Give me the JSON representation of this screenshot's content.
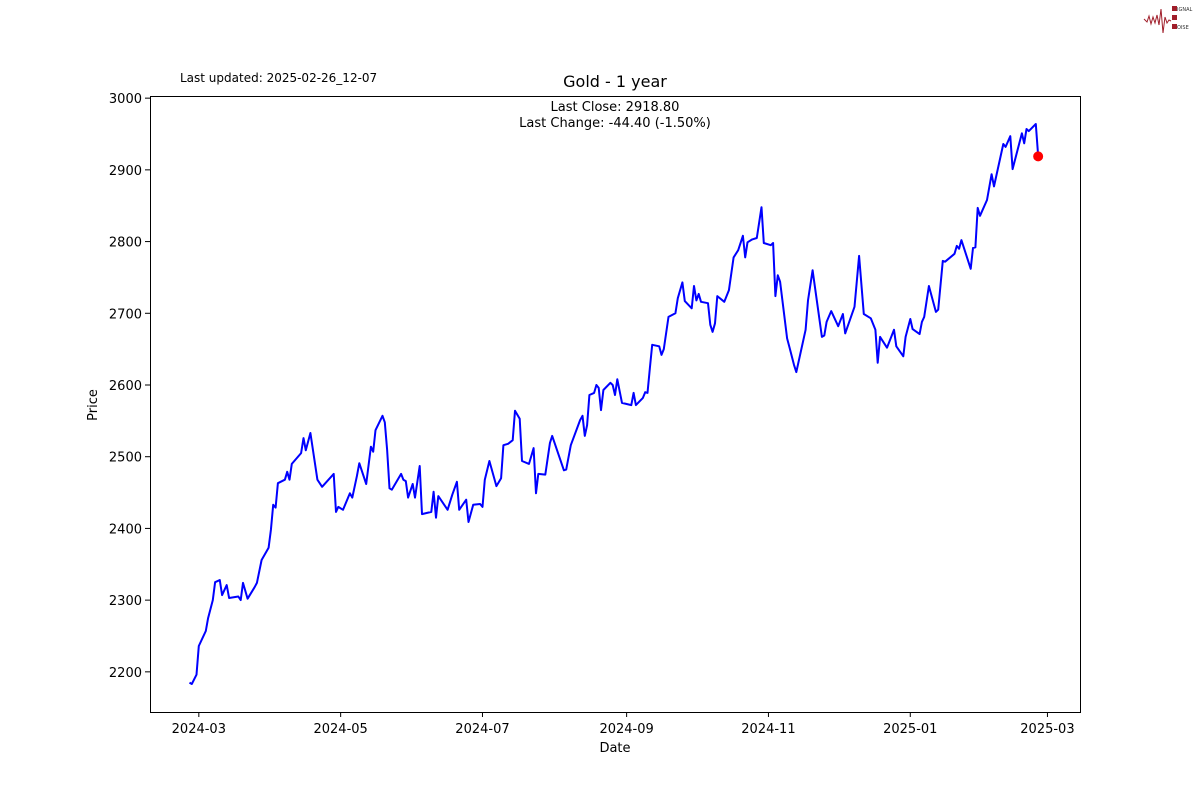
{
  "header": {
    "last_updated": "Last updated: 2025-02-26_12-07",
    "logo_text": "SIGNAL 2 NOISE"
  },
  "chart_data": {
    "type": "line",
    "title": "Gold - 1 year",
    "xlabel": "Date",
    "ylabel": "Price",
    "annotation": [
      "Last Close: 2918.80",
      "Last Change: -44.40 (-1.50%)"
    ],
    "xlim": [
      "2024-02-09",
      "2025-03-15"
    ],
    "ylim": [
      2144,
      3003
    ],
    "grid": false,
    "line_color": "#0000ff",
    "marker_color": "#ff0000",
    "x_ticks": [
      {
        "value": "2024-03-01",
        "label": "2024-03"
      },
      {
        "value": "2024-05-01",
        "label": "2024-05"
      },
      {
        "value": "2024-07-01",
        "label": "2024-07"
      },
      {
        "value": "2024-09-01",
        "label": "2024-09"
      },
      {
        "value": "2024-11-01",
        "label": "2024-11"
      },
      {
        "value": "2025-01-01",
        "label": "2025-01"
      },
      {
        "value": "2025-03-01",
        "label": "2025-03"
      }
    ],
    "y_ticks": [
      2200,
      2300,
      2400,
      2500,
      2600,
      2700,
      2800,
      2900,
      3000
    ],
    "last_point": {
      "date": "2025-02-25",
      "value": 2918.8
    },
    "series": [
      {
        "points": [
          [
            "2024-02-26",
            2185
          ],
          [
            "2024-02-27",
            2183
          ],
          [
            "2024-02-29",
            2196
          ],
          [
            "2024-03-01",
            2236
          ],
          [
            "2024-03-04",
            2257
          ],
          [
            "2024-03-05",
            2275
          ],
          [
            "2024-03-07",
            2300
          ],
          [
            "2024-03-08",
            2325
          ],
          [
            "2024-03-10",
            2328
          ],
          [
            "2024-03-11",
            2307
          ],
          [
            "2024-03-13",
            2321
          ],
          [
            "2024-03-14",
            2303
          ],
          [
            "2024-03-18",
            2305
          ],
          [
            "2024-03-19",
            2300
          ],
          [
            "2024-03-20",
            2324
          ],
          [
            "2024-03-22",
            2302
          ],
          [
            "2024-03-25",
            2318
          ],
          [
            "2024-03-26",
            2324
          ],
          [
            "2024-03-28",
            2356
          ],
          [
            "2024-03-31",
            2373
          ],
          [
            "2024-04-01",
            2398
          ],
          [
            "2024-04-02",
            2433
          ],
          [
            "2024-04-03",
            2429
          ],
          [
            "2024-04-04",
            2463
          ],
          [
            "2024-04-07",
            2468
          ],
          [
            "2024-04-08",
            2479
          ],
          [
            "2024-04-09",
            2468
          ],
          [
            "2024-04-10",
            2490
          ],
          [
            "2024-04-14",
            2505
          ],
          [
            "2024-04-15",
            2526
          ],
          [
            "2024-04-16",
            2509
          ],
          [
            "2024-04-18",
            2533
          ],
          [
            "2024-04-21",
            2468
          ],
          [
            "2024-04-23",
            2458
          ],
          [
            "2024-04-28",
            2476
          ],
          [
            "2024-04-29",
            2423
          ],
          [
            "2024-04-30",
            2430
          ],
          [
            "2024-05-02",
            2426
          ],
          [
            "2024-05-05",
            2449
          ],
          [
            "2024-05-06",
            2443
          ],
          [
            "2024-05-08",
            2473
          ],
          [
            "2024-05-09",
            2491
          ],
          [
            "2024-05-12",
            2462
          ],
          [
            "2024-05-14",
            2514
          ],
          [
            "2024-05-15",
            2507
          ],
          [
            "2024-05-16",
            2537
          ],
          [
            "2024-05-19",
            2557
          ],
          [
            "2024-05-20",
            2548
          ],
          [
            "2024-05-21",
            2510
          ],
          [
            "2024-05-22",
            2456
          ],
          [
            "2024-05-23",
            2454
          ],
          [
            "2024-05-27",
            2476
          ],
          [
            "2024-05-28",
            2468
          ],
          [
            "2024-05-29",
            2466
          ],
          [
            "2024-05-30",
            2443
          ],
          [
            "2024-06-01",
            2462
          ],
          [
            "2024-06-02",
            2443
          ],
          [
            "2024-06-04",
            2487
          ],
          [
            "2024-06-05",
            2420
          ],
          [
            "2024-06-09",
            2423
          ],
          [
            "2024-06-10",
            2451
          ],
          [
            "2024-06-11",
            2415
          ],
          [
            "2024-06-12",
            2445
          ],
          [
            "2024-06-16",
            2426
          ],
          [
            "2024-06-18",
            2447
          ],
          [
            "2024-06-20",
            2465
          ],
          [
            "2024-06-21",
            2426
          ],
          [
            "2024-06-24",
            2440
          ],
          [
            "2024-06-25",
            2409
          ],
          [
            "2024-06-27",
            2433
          ],
          [
            "2024-06-30",
            2434
          ],
          [
            "2024-07-01",
            2430
          ],
          [
            "2024-07-02",
            2468
          ],
          [
            "2024-07-04",
            2494
          ],
          [
            "2024-07-07",
            2459
          ],
          [
            "2024-07-09",
            2470
          ],
          [
            "2024-07-10",
            2516
          ],
          [
            "2024-07-12",
            2518
          ],
          [
            "2024-07-14",
            2523
          ],
          [
            "2024-07-15",
            2564
          ],
          [
            "2024-07-17",
            2553
          ],
          [
            "2024-07-18",
            2494
          ],
          [
            "2024-07-21",
            2490
          ],
          [
            "2024-07-23",
            2512
          ],
          [
            "2024-07-24",
            2449
          ],
          [
            "2024-07-25",
            2476
          ],
          [
            "2024-07-28",
            2475
          ],
          [
            "2024-07-30",
            2519
          ],
          [
            "2024-07-31",
            2529
          ],
          [
            "2024-08-05",
            2481
          ],
          [
            "2024-08-06",
            2482
          ],
          [
            "2024-08-08",
            2516
          ],
          [
            "2024-08-12",
            2551
          ],
          [
            "2024-08-13",
            2557
          ],
          [
            "2024-08-14",
            2529
          ],
          [
            "2024-08-15",
            2544
          ],
          [
            "2024-08-16",
            2586
          ],
          [
            "2024-08-18",
            2589
          ],
          [
            "2024-08-19",
            2600
          ],
          [
            "2024-08-20",
            2596
          ],
          [
            "2024-08-21",
            2565
          ],
          [
            "2024-08-22",
            2593
          ],
          [
            "2024-08-25",
            2603
          ],
          [
            "2024-08-26",
            2600
          ],
          [
            "2024-08-27",
            2586
          ],
          [
            "2024-08-28",
            2608
          ],
          [
            "2024-08-30",
            2575
          ],
          [
            "2024-09-03",
            2572
          ],
          [
            "2024-09-04",
            2589
          ],
          [
            "2024-09-05",
            2572
          ],
          [
            "2024-09-08",
            2582
          ],
          [
            "2024-09-09",
            2590
          ],
          [
            "2024-09-10",
            2589
          ],
          [
            "2024-09-11",
            2624
          ],
          [
            "2024-09-12",
            2656
          ],
          [
            "2024-09-15",
            2654
          ],
          [
            "2024-09-16",
            2642
          ],
          [
            "2024-09-17",
            2650
          ],
          [
            "2024-09-19",
            2695
          ],
          [
            "2024-09-22",
            2700
          ],
          [
            "2024-09-23",
            2721
          ],
          [
            "2024-09-25",
            2743
          ],
          [
            "2024-09-26",
            2717
          ],
          [
            "2024-09-29",
            2707
          ],
          [
            "2024-09-30",
            2738
          ],
          [
            "2024-10-01",
            2718
          ],
          [
            "2024-10-02",
            2727
          ],
          [
            "2024-10-03",
            2716
          ],
          [
            "2024-10-06",
            2714
          ],
          [
            "2024-10-07",
            2684
          ],
          [
            "2024-10-08",
            2674
          ],
          [
            "2024-10-09",
            2686
          ],
          [
            "2024-10-10",
            2724
          ],
          [
            "2024-10-13",
            2716
          ],
          [
            "2024-10-15",
            2732
          ],
          [
            "2024-10-17",
            2778
          ],
          [
            "2024-10-19",
            2788
          ],
          [
            "2024-10-21",
            2808
          ],
          [
            "2024-10-22",
            2778
          ],
          [
            "2024-10-23",
            2799
          ],
          [
            "2024-10-25",
            2803
          ],
          [
            "2024-10-27",
            2805
          ],
          [
            "2024-10-29",
            2848
          ],
          [
            "2024-10-30",
            2798
          ],
          [
            "2024-11-02",
            2795
          ],
          [
            "2024-11-03",
            2798
          ],
          [
            "2024-11-04",
            2724
          ],
          [
            "2024-11-05",
            2753
          ],
          [
            "2024-11-06",
            2744
          ],
          [
            "2024-11-09",
            2665
          ],
          [
            "2024-11-10",
            2653
          ],
          [
            "2024-11-12",
            2628
          ],
          [
            "2024-11-13",
            2618
          ],
          [
            "2024-11-17",
            2677
          ],
          [
            "2024-11-18",
            2718
          ],
          [
            "2024-11-20",
            2760
          ],
          [
            "2024-11-24",
            2667
          ],
          [
            "2024-11-25",
            2669
          ],
          [
            "2024-11-26",
            2688
          ],
          [
            "2024-11-28",
            2703
          ],
          [
            "2024-12-01",
            2682
          ],
          [
            "2024-12-03",
            2699
          ],
          [
            "2024-12-04",
            2672
          ],
          [
            "2024-12-08",
            2709
          ],
          [
            "2024-12-10",
            2780
          ],
          [
            "2024-12-12",
            2699
          ],
          [
            "2024-12-15",
            2693
          ],
          [
            "2024-12-17",
            2677
          ],
          [
            "2024-12-18",
            2631
          ],
          [
            "2024-12-19",
            2667
          ],
          [
            "2024-12-22",
            2652
          ],
          [
            "2024-12-25",
            2677
          ],
          [
            "2024-12-26",
            2654
          ],
          [
            "2024-12-29",
            2640
          ],
          [
            "2024-12-30",
            2667
          ],
          [
            "2025-01-01",
            2692
          ],
          [
            "2025-01-02",
            2678
          ],
          [
            "2025-01-05",
            2671
          ],
          [
            "2025-01-06",
            2688
          ],
          [
            "2025-01-07",
            2695
          ],
          [
            "2025-01-09",
            2738
          ],
          [
            "2025-01-12",
            2702
          ],
          [
            "2025-01-13",
            2705
          ],
          [
            "2025-01-15",
            2773
          ],
          [
            "2025-01-16",
            2772
          ],
          [
            "2025-01-20",
            2783
          ],
          [
            "2025-01-21",
            2794
          ],
          [
            "2025-01-22",
            2790
          ],
          [
            "2025-01-23",
            2802
          ],
          [
            "2025-01-27",
            2762
          ],
          [
            "2025-01-28",
            2791
          ],
          [
            "2025-01-29",
            2792
          ],
          [
            "2025-01-30",
            2847
          ],
          [
            "2025-01-31",
            2836
          ],
          [
            "2025-02-03",
            2858
          ],
          [
            "2025-02-05",
            2894
          ],
          [
            "2025-02-06",
            2877
          ],
          [
            "2025-02-10",
            2936
          ],
          [
            "2025-02-11",
            2932
          ],
          [
            "2025-02-13",
            2947
          ],
          [
            "2025-02-14",
            2901
          ],
          [
            "2025-02-18",
            2951
          ],
          [
            "2025-02-19",
            2937
          ],
          [
            "2025-02-20",
            2957
          ],
          [
            "2025-02-21",
            2954
          ],
          [
            "2025-02-24",
            2964
          ],
          [
            "2025-02-25",
            2918.8
          ]
        ]
      }
    ]
  }
}
